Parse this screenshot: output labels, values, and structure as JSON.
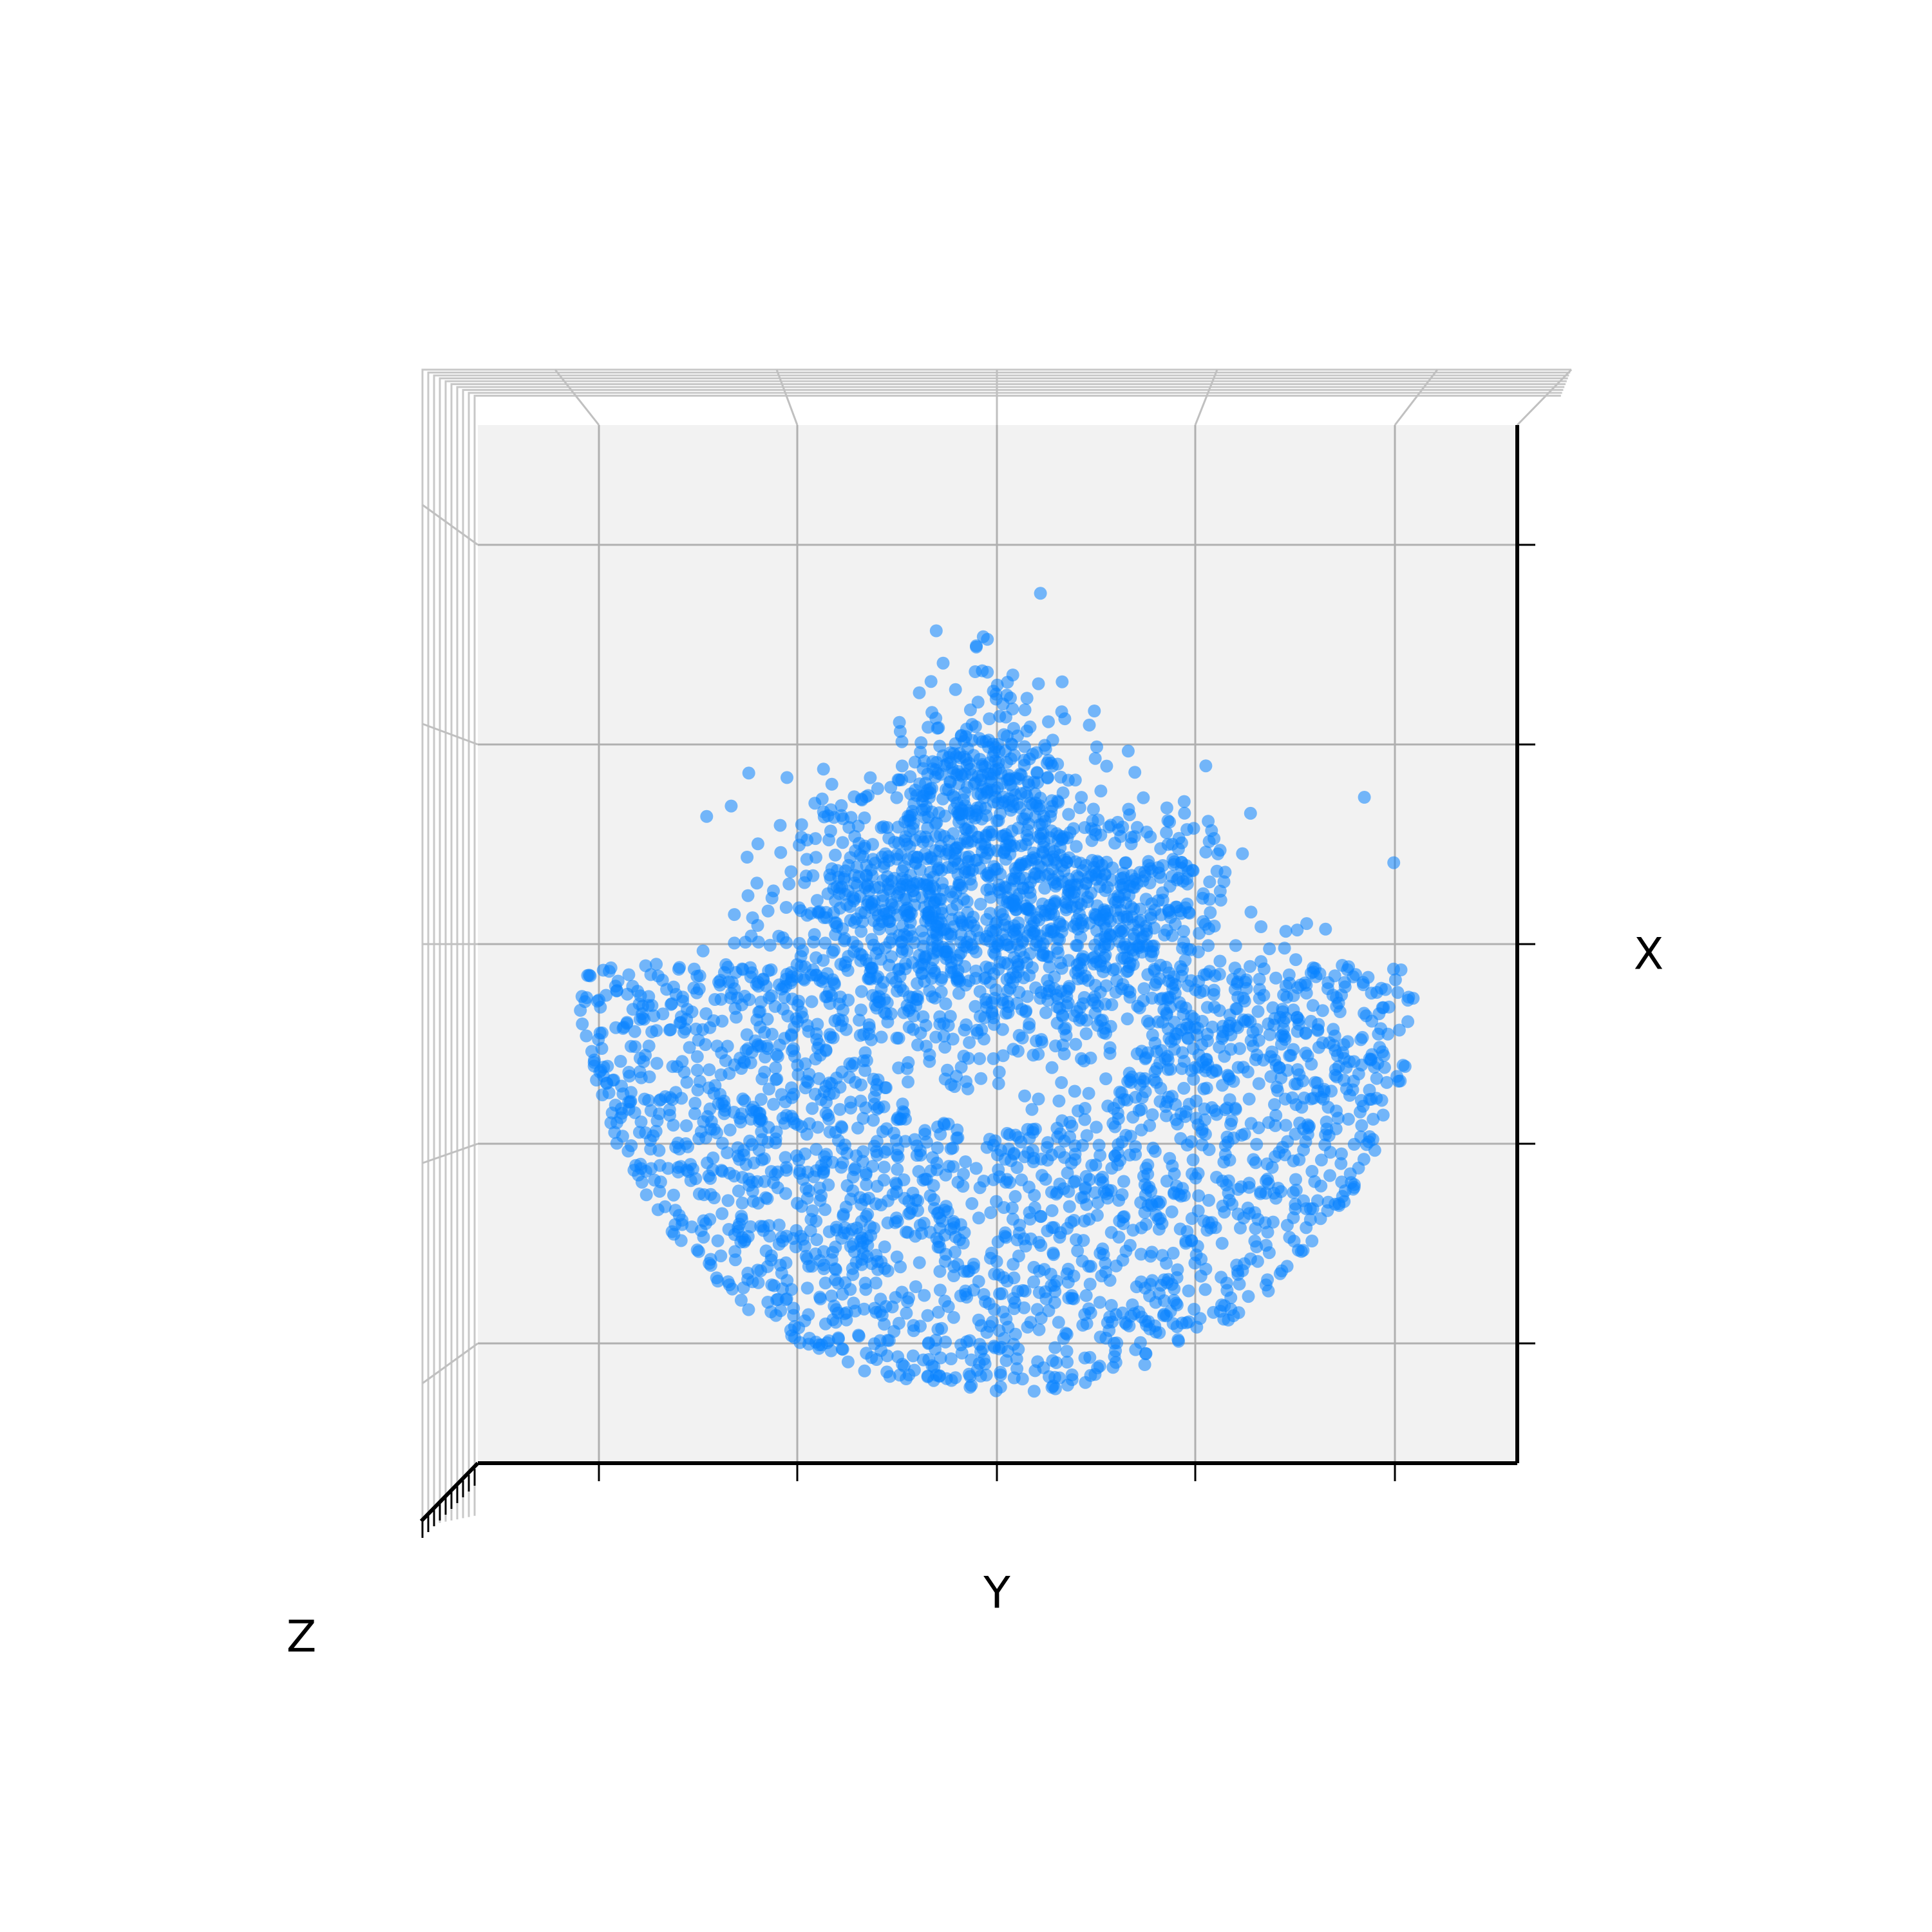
{
  "chart_data": {
    "type": "scatter",
    "view": "3d",
    "axes": {
      "x_label": "X",
      "y_label": "Y",
      "z_label": "Z",
      "tick_labels_shown": false,
      "grid": true
    },
    "colors": {
      "points": "#0a84ff",
      "pane": "#f2f2f2",
      "grid": "#b0b0b0",
      "axis": "#000000"
    },
    "x_range": [
      -3.1,
      2.1
    ],
    "y_range": [
      -2.6,
      2.6
    ],
    "point_opacity": 0.55,
    "clusters": [
      {
        "shape": "bowl",
        "center": [
          -0.6,
          0.0
        ],
        "width": 2.1,
        "depth": 2.15,
        "count": 1900
      },
      {
        "shape": "blob",
        "center": [
          -0.55,
          0.0
        ],
        "spread": [
          0.38,
          0.6
        ],
        "count": 700
      },
      {
        "shape": "blob",
        "center": [
          0.2,
          -0.05
        ],
        "spread": [
          0.32,
          0.22
        ],
        "count": 380
      },
      {
        "shape": "blob",
        "center": [
          -0.25,
          -0.55
        ],
        "spread": [
          0.3,
          0.28
        ],
        "count": 320
      },
      {
        "shape": "blob",
        "center": [
          -0.3,
          0.55
        ],
        "spread": [
          0.28,
          0.3
        ],
        "count": 320
      }
    ]
  }
}
